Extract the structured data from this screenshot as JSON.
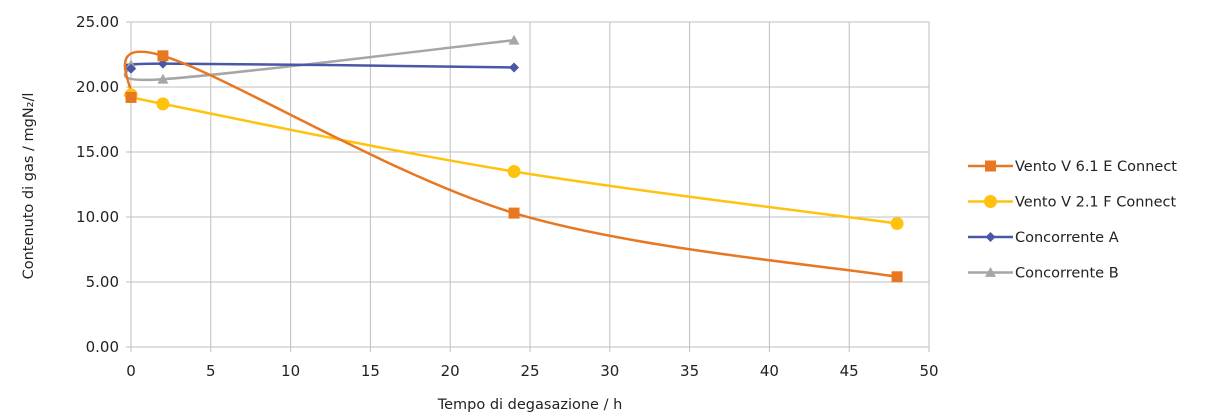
{
  "chart_data": {
    "type": "line",
    "title": "",
    "xlabel": "Tempo di degasazione / h",
    "ylabel": "Contenuto di gas / mgN₂/l",
    "xlim": [
      0,
      50
    ],
    "ylim": [
      0,
      25
    ],
    "xticks": [
      0,
      5,
      10,
      15,
      20,
      25,
      30,
      35,
      40,
      45,
      50
    ],
    "yticks": [
      0,
      5,
      10,
      15,
      20,
      25
    ],
    "xtick_labels": [
      "0",
      "5",
      "10",
      "15",
      "20",
      "25",
      "30",
      "35",
      "40",
      "45",
      "50"
    ],
    "ytick_labels": [
      "0.00",
      "5.00",
      "10.00",
      "15.00",
      "20.00",
      "25.00"
    ],
    "grid": true,
    "legend_position": "right",
    "series": [
      {
        "name": "Vento V 6.1 E Connect",
        "color": "#E87722",
        "marker": "square",
        "x": [
          0,
          2,
          24,
          48
        ],
        "y": [
          19.2,
          22.4,
          10.3,
          5.4
        ]
      },
      {
        "name": "Vento V 2.1 F Connect",
        "color": "#FFC20E",
        "marker": "circle",
        "x": [
          0,
          2,
          24,
          48
        ],
        "y": [
          19.4,
          18.7,
          13.5,
          9.5
        ]
      },
      {
        "name": "Concorrente A",
        "color": "#4A56A6",
        "marker": "diamond",
        "x": [
          0,
          2,
          24
        ],
        "y": [
          21.4,
          21.8,
          21.5
        ]
      },
      {
        "name": "Concorrente B",
        "color": "#A6A6A6",
        "marker": "triangle",
        "x": [
          0,
          2,
          24
        ],
        "y": [
          21.7,
          20.6,
          23.6
        ]
      }
    ]
  }
}
